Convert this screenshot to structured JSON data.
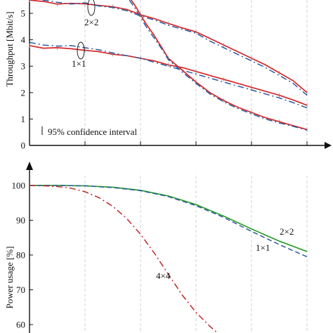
{
  "chart_data": [
    {
      "type": "line",
      "ylabel": "Throughput [Mbit/s]",
      "ylim": [
        0,
        5.6
      ],
      "yticks": [
        "0",
        "1",
        "2",
        "3",
        "4",
        "5"
      ],
      "xlim": [
        0,
        10
      ],
      "grid": "vertical dashed",
      "annotations": [
        "2×2",
        "1×1"
      ],
      "legend": {
        "position": "bottom-left",
        "text": "95% confidence interval"
      },
      "series": [
        {
          "style": "solid",
          "color": "#d62728",
          "x": [
            0,
            0.5,
            1,
            1.5,
            2,
            2.5,
            3,
            3.5,
            4,
            4.5,
            5,
            5.5,
            6,
            6.5,
            7,
            7.5,
            8,
            8.5,
            9,
            9.5,
            10
          ],
          "values": [
            5.5,
            5.45,
            5.35,
            5.38,
            5.36,
            5.3,
            5.25,
            5.15,
            4.95,
            4.8,
            4.62,
            4.45,
            4.3,
            4.05,
            3.8,
            3.55,
            3.3,
            3.05,
            2.75,
            2.45,
            2.0
          ]
        },
        {
          "style": "dash-dot",
          "color": "#2c5aa0",
          "x": [
            0,
            0.5,
            1,
            1.5,
            2,
            2.5,
            3,
            3.5,
            4,
            4.5,
            5,
            5.5,
            6,
            6.5,
            7,
            7.5,
            8,
            8.5,
            9,
            9.5,
            10
          ],
          "values": [
            5.6,
            5.5,
            5.42,
            5.35,
            5.4,
            5.28,
            5.22,
            5.1,
            4.9,
            4.75,
            4.55,
            4.4,
            4.25,
            3.95,
            3.7,
            3.45,
            3.2,
            2.95,
            2.65,
            2.35,
            1.9
          ]
        },
        {
          "style": "solid",
          "color": "#d62728",
          "x": [
            0,
            0.5,
            1,
            1.5,
            2,
            2.5,
            3,
            3.5,
            4,
            4.5,
            5,
            5.5,
            6,
            6.5,
            7,
            7.5,
            8,
            8.5,
            9,
            9.5,
            10
          ],
          "values": [
            3.78,
            3.68,
            3.7,
            3.66,
            3.6,
            3.55,
            3.45,
            3.4,
            3.3,
            3.2,
            3.05,
            2.95,
            2.8,
            2.65,
            2.5,
            2.35,
            2.2,
            2.05,
            1.9,
            1.72,
            1.52
          ]
        },
        {
          "style": "dash-dot",
          "color": "#2c5aa0",
          "x": [
            0,
            0.5,
            1,
            1.5,
            2,
            2.5,
            3,
            3.5,
            4,
            4.5,
            5,
            5.5,
            6,
            6.5,
            7,
            7.5,
            8,
            8.5,
            9,
            9.5,
            10
          ],
          "values": [
            3.9,
            3.8,
            3.76,
            3.78,
            3.7,
            3.62,
            3.5,
            3.4,
            3.3,
            3.15,
            3.0,
            2.85,
            2.7,
            2.55,
            2.4,
            2.25,
            2.1,
            1.95,
            1.8,
            1.62,
            1.42
          ]
        },
        {
          "style": "solid",
          "color": "#d62728",
          "x": [
            3.6,
            3.8,
            4,
            4.2,
            4.5,
            4.8,
            5,
            5.5,
            6,
            6.5,
            7,
            7.5,
            8,
            8.5,
            9,
            9.5,
            10
          ],
          "values": [
            5.6,
            5.3,
            4.95,
            4.6,
            4.15,
            3.65,
            3.3,
            2.85,
            2.4,
            2.0,
            1.7,
            1.45,
            1.25,
            1.05,
            0.9,
            0.75,
            0.6
          ]
        },
        {
          "style": "dash-dot",
          "color": "#2c5aa0",
          "x": [
            3.6,
            3.8,
            4,
            4.2,
            4.5,
            4.8,
            5,
            5.5,
            6,
            6.5,
            7,
            7.5,
            8,
            8.5,
            9,
            9.5,
            10
          ],
          "values": [
            5.5,
            5.2,
            4.85,
            4.5,
            4.05,
            3.6,
            3.25,
            2.78,
            2.35,
            1.95,
            1.65,
            1.4,
            1.2,
            1.0,
            0.85,
            0.72,
            0.58
          ]
        }
      ]
    },
    {
      "type": "line",
      "ylabel": "Power usage [%]",
      "ylim": [
        58,
        104
      ],
      "yticks": [
        "60",
        "70",
        "80",
        "90",
        "100"
      ],
      "xlim": [
        0,
        10
      ],
      "grid": "vertical dashed",
      "annotations": [
        "2×2",
        "1×1",
        "4×4"
      ],
      "series": [
        {
          "style": "solid",
          "color": "#2ca02c",
          "x": [
            0,
            1,
            2,
            3,
            4,
            5,
            6,
            7,
            8,
            9,
            10
          ],
          "values": [
            100,
            100,
            99.9,
            99.5,
            98.6,
            97.0,
            94.5,
            91.2,
            87.5,
            84.0,
            81.0
          ]
        },
        {
          "style": "dashed",
          "color": "#2c5aa0",
          "x": [
            0,
            1,
            2,
            3,
            4,
            5,
            6,
            7,
            8,
            9,
            10
          ],
          "values": [
            100,
            100,
            99.9,
            99.4,
            98.5,
            96.8,
            94.2,
            90.8,
            86.8,
            83.0,
            79.5
          ]
        },
        {
          "style": "dash-dot",
          "color": "#c0282d",
          "x": [
            0,
            0.5,
            1,
            1.5,
            2,
            2.5,
            3,
            3.5,
            4,
            4.5,
            5,
            5.5,
            6,
            6.5,
            7
          ],
          "values": [
            100,
            99.9,
            99.7,
            99.2,
            98.2,
            96.5,
            94.0,
            90.5,
            86.0,
            80.5,
            74.5,
            68.5,
            63.5,
            59.5,
            56.0
          ]
        }
      ]
    }
  ]
}
